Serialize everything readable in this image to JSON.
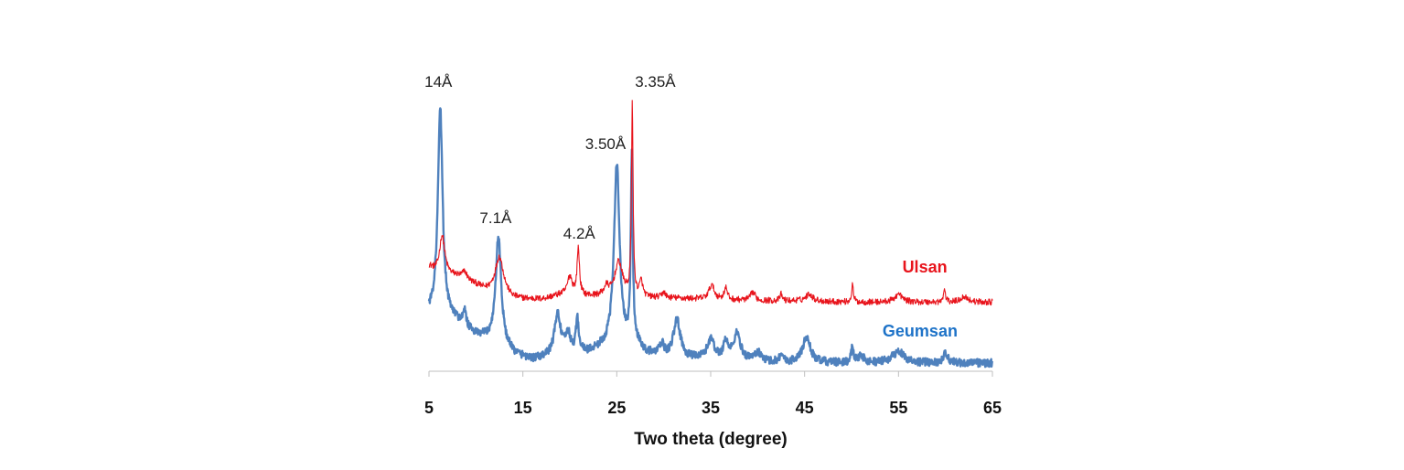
{
  "chart_data": {
    "type": "line",
    "title": "",
    "xlabel": "Two theta (degree)",
    "ylabel": "",
    "xlim": [
      5,
      65
    ],
    "ylim": [
      0,
      100
    ],
    "x_ticks": [
      "5",
      "15",
      "25",
      "35",
      "45",
      "55",
      "65"
    ],
    "x_tick_values": [
      5,
      15,
      25,
      35,
      45,
      55,
      65
    ],
    "y_axis_visible": false,
    "grid": false,
    "series": [
      {
        "name": "Ulsan",
        "color": "#e8141c",
        "baseline_points": [
          [
            5,
            36.6
          ],
          [
            6,
            33.5
          ],
          [
            8,
            33.0
          ],
          [
            10,
            30.0
          ],
          [
            11,
            28.0
          ],
          [
            14,
            25.0
          ],
          [
            17,
            25.0
          ],
          [
            19,
            26.5
          ],
          [
            22,
            26.0
          ],
          [
            24,
            26.0
          ],
          [
            26,
            26.0
          ],
          [
            28,
            25.5
          ],
          [
            30,
            25.5
          ],
          [
            35,
            25.0
          ],
          [
            40,
            24.5
          ],
          [
            45,
            24.5
          ],
          [
            50,
            24.0
          ],
          [
            55,
            24.0
          ],
          [
            60,
            24.0
          ],
          [
            65,
            24.0
          ]
        ],
        "peaks": [
          {
            "x": 6.4,
            "y": 47.5,
            "width": 0.35
          },
          {
            "x": 8.8,
            "y": 34.5,
            "width": 0.3
          },
          {
            "x": 12.5,
            "y": 40.0,
            "width": 0.55
          },
          {
            "x": 20.0,
            "y": 33.0,
            "width": 0.3
          },
          {
            "x": 20.9,
            "y": 42.8,
            "width": 0.15
          },
          {
            "x": 23.9,
            "y": 29.0,
            "width": 0.3
          },
          {
            "x": 25.2,
            "y": 38.0,
            "width": 0.5
          },
          {
            "x": 26.65,
            "y": 95.0,
            "width": 0.1
          },
          {
            "x": 27.6,
            "y": 31.0,
            "width": 0.2
          },
          {
            "x": 30.0,
            "y": 27.5,
            "width": 0.2
          },
          {
            "x": 35.1,
            "y": 30.0,
            "width": 0.35
          },
          {
            "x": 36.6,
            "y": 29.0,
            "width": 0.2
          },
          {
            "x": 39.5,
            "y": 27.5,
            "width": 0.3
          },
          {
            "x": 42.5,
            "y": 26.8,
            "width": 0.15
          },
          {
            "x": 45.5,
            "y": 27.0,
            "width": 0.4
          },
          {
            "x": 50.1,
            "y": 30.0,
            "width": 0.12
          },
          {
            "x": 55.0,
            "y": 26.8,
            "width": 0.5
          },
          {
            "x": 59.9,
            "y": 28.5,
            "width": 0.12
          },
          {
            "x": 62.0,
            "y": 26.0,
            "width": 0.5
          }
        ]
      },
      {
        "name": "Geumsan",
        "color": "#4f81bd",
        "baseline_points": [
          [
            5,
            20.0
          ],
          [
            6,
            19.5
          ],
          [
            8,
            17.0
          ],
          [
            10,
            12.0
          ],
          [
            12,
            10.0
          ],
          [
            14,
            5.5
          ],
          [
            16,
            3.5
          ],
          [
            18,
            4.5
          ],
          [
            20,
            5.0
          ],
          [
            22,
            6.0
          ],
          [
            23.5,
            7.5
          ],
          [
            27,
            9.0
          ],
          [
            28,
            6.0
          ],
          [
            30,
            4.0
          ],
          [
            35,
            3.5
          ],
          [
            40,
            3.0
          ],
          [
            45,
            2.5
          ],
          [
            50,
            2.5
          ],
          [
            55,
            2.5
          ],
          [
            60,
            2.5
          ],
          [
            65,
            2.5
          ]
        ],
        "peaks": [
          {
            "x": 6.2,
            "y": 92.0,
            "width": 0.3
          },
          {
            "x": 8.8,
            "y": 20.0,
            "width": 0.2
          },
          {
            "x": 12.4,
            "y": 47.0,
            "width": 0.35
          },
          {
            "x": 18.7,
            "y": 19.5,
            "width": 0.4
          },
          {
            "x": 19.8,
            "y": 12.0,
            "width": 0.3
          },
          {
            "x": 20.8,
            "y": 17.0,
            "width": 0.2
          },
          {
            "x": 25.0,
            "y": 73.0,
            "width": 0.35
          },
          {
            "x": 26.6,
            "y": 75.0,
            "width": 0.12
          },
          {
            "x": 29.8,
            "y": 8.5,
            "width": 0.3
          },
          {
            "x": 31.4,
            "y": 17.5,
            "width": 0.45
          },
          {
            "x": 35.0,
            "y": 10.5,
            "width": 0.45
          },
          {
            "x": 36.6,
            "y": 9.5,
            "width": 0.3
          },
          {
            "x": 37.8,
            "y": 12.5,
            "width": 0.45
          },
          {
            "x": 40.0,
            "y": 6.0,
            "width": 0.4
          },
          {
            "x": 42.5,
            "y": 5.5,
            "width": 0.2
          },
          {
            "x": 45.2,
            "y": 11.5,
            "width": 0.5
          },
          {
            "x": 50.1,
            "y": 8.0,
            "width": 0.15
          },
          {
            "x": 51.0,
            "y": 5.0,
            "width": 0.4
          },
          {
            "x": 55.0,
            "y": 6.5,
            "width": 0.8
          },
          {
            "x": 60.0,
            "y": 6.0,
            "width": 0.3
          }
        ]
      }
    ],
    "annotations": [
      {
        "text": "14Å",
        "x": 6.0,
        "y": 100.0
      },
      {
        "text": "7.1Å",
        "x": 12.1,
        "y": 52.0
      },
      {
        "text": "4.2Å",
        "x": 21.0,
        "y": 46.5
      },
      {
        "text": "3.50Å",
        "x": 23.8,
        "y": 78.0
      },
      {
        "text": "3.35Å",
        "x": 29.1,
        "y": 100.0
      }
    ],
    "series_labels": [
      {
        "text": "Ulsan",
        "series": "Ulsan",
        "x": 57.8,
        "y": 34.5
      },
      {
        "text": "Geumsan",
        "series": "Geumsan",
        "x": 57.3,
        "y": 12.0
      }
    ]
  }
}
